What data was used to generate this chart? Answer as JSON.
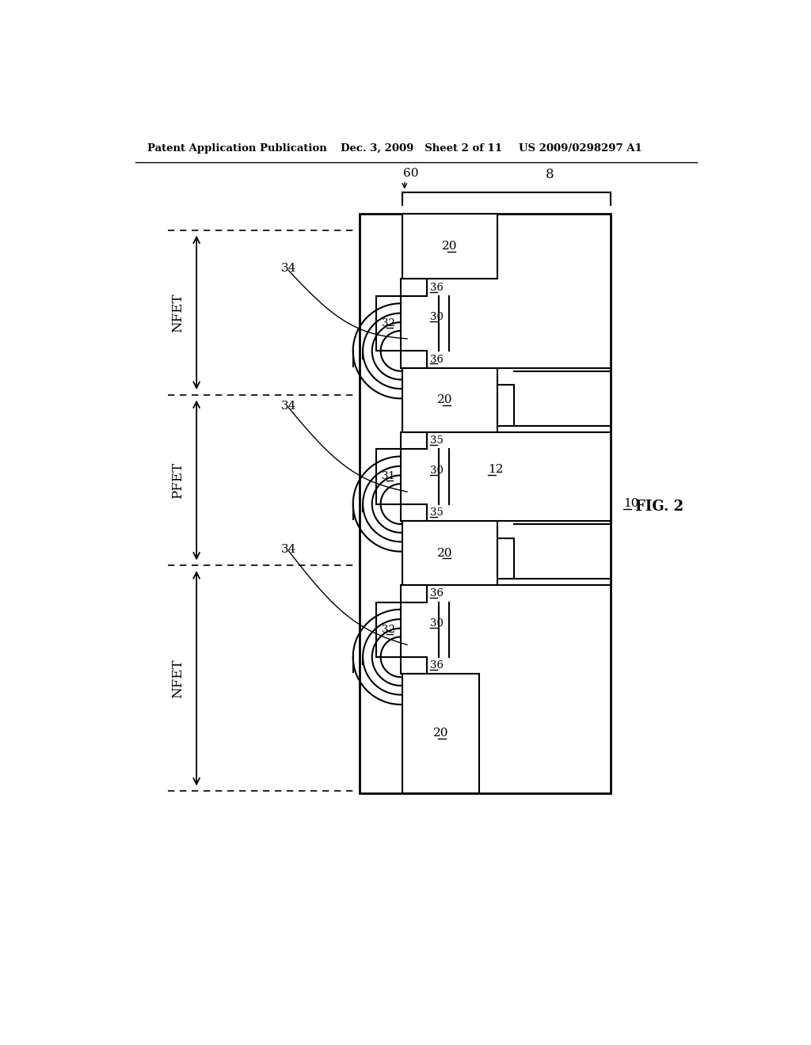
{
  "header_left": "Patent Application Publication",
  "header_mid": "Dec. 3, 2009   Sheet 2 of 11",
  "header_right": "US 2009/0298297 A1",
  "fig_label": "FIG. 2",
  "bg_color": "#ffffff"
}
